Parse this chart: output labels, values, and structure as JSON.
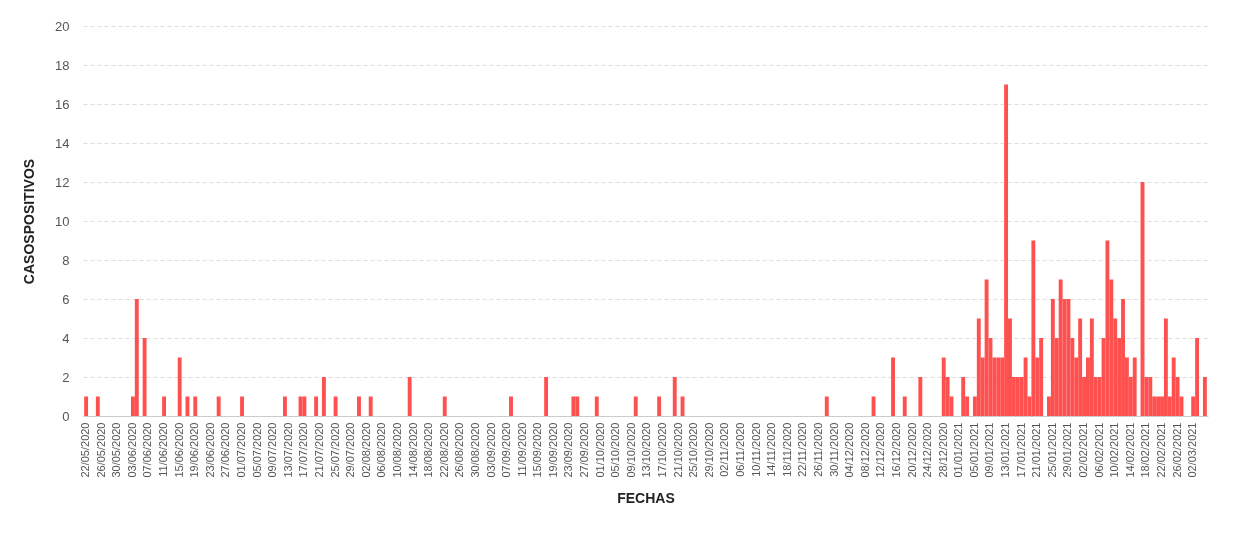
{
  "chart_data": {
    "type": "bar",
    "xlabel": "FECHAS",
    "ylabel": "CASOSPOSITIVOS",
    "categories": [
      "22/05/2020",
      null,
      null,
      null,
      "26/05/2020",
      null,
      null,
      null,
      "30/05/2020",
      null,
      null,
      null,
      "03/06/2020",
      null,
      null,
      null,
      "07/06/2020",
      null,
      null,
      null,
      "11/06/2020",
      null,
      null,
      null,
      "15/06/2020",
      null,
      null,
      null,
      "19/06/2020",
      null,
      null,
      null,
      "23/06/2020",
      null,
      null,
      null,
      "27/06/2020",
      null,
      null,
      null,
      "01/07/2020",
      null,
      null,
      null,
      "05/07/2020",
      null,
      null,
      null,
      "09/07/2020",
      null,
      null,
      null,
      "13/07/2020",
      null,
      null,
      null,
      "17/07/2020",
      null,
      null,
      null,
      "21/07/2020",
      null,
      null,
      null,
      "25/07/2020",
      null,
      null,
      null,
      "29/07/2020",
      null,
      null,
      null,
      "02/08/2020",
      null,
      null,
      null,
      "06/08/2020",
      null,
      null,
      null,
      "10/08/2020",
      null,
      null,
      null,
      "14/08/2020",
      null,
      null,
      null,
      "18/08/2020",
      null,
      null,
      null,
      "22/08/2020",
      null,
      null,
      null,
      "26/08/2020",
      null,
      null,
      null,
      "30/08/2020",
      null,
      null,
      null,
      "03/09/2020",
      null,
      null,
      null,
      "07/09/2020",
      null,
      null,
      null,
      "11/09/2020",
      null,
      null,
      null,
      "15/09/2020",
      null,
      null,
      null,
      "19/09/2020",
      null,
      null,
      null,
      "23/09/2020",
      null,
      null,
      null,
      "27/09/2020",
      null,
      null,
      null,
      "01/10/2020",
      null,
      null,
      null,
      "05/10/2020",
      null,
      null,
      null,
      "09/10/2020",
      null,
      null,
      null,
      "13/10/2020",
      null,
      null,
      null,
      "17/10/2020",
      null,
      null,
      null,
      "21/10/2020",
      null,
      null,
      null,
      "25/10/2020",
      null,
      null,
      null,
      "29/10/2020",
      null,
      null,
      null,
      "02/11/2020",
      null,
      null,
      null,
      "06/11/2020",
      null,
      null,
      null,
      "10/11/2020",
      null,
      null,
      null,
      "14/11/2020",
      null,
      null,
      null,
      "18/11/2020",
      null,
      null,
      null,
      "22/11/2020",
      null,
      null,
      null,
      "26/11/2020",
      null,
      null,
      null,
      "30/11/2020",
      null,
      null,
      null,
      "04/12/2020",
      null,
      null,
      null,
      "08/12/2020",
      null,
      null,
      null,
      "12/12/2020",
      null,
      null,
      null,
      "16/12/2020",
      null,
      null,
      null,
      "20/12/2020",
      null,
      null,
      null,
      "24/12/2020",
      null,
      null,
      null,
      "28/12/2020",
      null,
      null,
      null,
      "01/01/2021",
      null,
      null,
      null,
      "05/01/2021",
      null,
      null,
      null,
      "09/01/2021",
      null,
      null,
      null,
      "13/01/2021",
      null,
      null,
      null,
      "17/01/2021",
      null,
      null,
      null,
      "21/01/2021",
      null,
      null,
      null,
      "25/01/2021",
      null,
      null,
      null,
      "29/01/2021",
      null,
      null,
      null,
      "02/02/2021",
      null,
      null,
      null,
      "06/02/2021",
      null,
      null,
      null,
      "10/02/2021",
      null,
      null,
      null,
      "14/02/2021",
      null,
      null,
      null,
      "18/02/2021",
      null,
      null,
      null,
      "22/02/2021",
      null,
      null,
      null,
      "26/02/2021",
      null,
      null,
      null,
      "02/03/2021",
      null,
      null,
      null
    ],
    "values": [
      1,
      0,
      0,
      1,
      0,
      0,
      0,
      0,
      0,
      0,
      0,
      0,
      1,
      6,
      0,
      4,
      0,
      0,
      0,
      0,
      1,
      0,
      0,
      0,
      3,
      0,
      1,
      0,
      1,
      0,
      0,
      0,
      0,
      0,
      1,
      0,
      0,
      0,
      0,
      0,
      1,
      0,
      0,
      0,
      0,
      0,
      0,
      0,
      0,
      0,
      0,
      1,
      0,
      0,
      0,
      1,
      1,
      0,
      0,
      1,
      0,
      2,
      0,
      0,
      1,
      0,
      0,
      0,
      0,
      0,
      1,
      0,
      0,
      1,
      0,
      0,
      0,
      0,
      0,
      0,
      0,
      0,
      0,
      2,
      0,
      0,
      0,
      0,
      0,
      0,
      0,
      0,
      1,
      0,
      0,
      0,
      0,
      0,
      0,
      0,
      0,
      0,
      0,
      0,
      0,
      0,
      0,
      0,
      0,
      1,
      0,
      0,
      0,
      0,
      0,
      0,
      0,
      0,
      2,
      0,
      0,
      0,
      0,
      0,
      0,
      1,
      1,
      0,
      0,
      0,
      0,
      1,
      0,
      0,
      0,
      0,
      0,
      0,
      0,
      0,
      0,
      1,
      0,
      0,
      0,
      0,
      0,
      1,
      0,
      0,
      0,
      2,
      0,
      1,
      0,
      0,
      0,
      0,
      0,
      0,
      0,
      0,
      0,
      0,
      0,
      0,
      0,
      0,
      0,
      0,
      0,
      0,
      0,
      0,
      0,
      0,
      0,
      0,
      0,
      0,
      0,
      0,
      0,
      0,
      0,
      0,
      0,
      0,
      0,
      0,
      1,
      0,
      0,
      0,
      0,
      0,
      0,
      0,
      0,
      0,
      0,
      0,
      1,
      0,
      0,
      0,
      0,
      3,
      0,
      0,
      1,
      0,
      0,
      0,
      2,
      0,
      0,
      0,
      0,
      0,
      3,
      2,
      1,
      0,
      0,
      2,
      1,
      0,
      1,
      5,
      3,
      7,
      4,
      3,
      3,
      3,
      17,
      5,
      2,
      2,
      2,
      3,
      1,
      9,
      3,
      4,
      0,
      1,
      6,
      4,
      7,
      6,
      6,
      4,
      3,
      5,
      2,
      3,
      5,
      2,
      2,
      4,
      9,
      7,
      5,
      4,
      6,
      3,
      2,
      3,
      0,
      12,
      2,
      2,
      1,
      1,
      1,
      5,
      1,
      3,
      2,
      1,
      0,
      0,
      1,
      4,
      0,
      2
    ],
    "color": "#ff5050",
    "ylim": [
      0,
      20
    ],
    "yticks": [
      0,
      2,
      4,
      6,
      8,
      10,
      12,
      14,
      16,
      18,
      20
    ],
    "grid": true
  }
}
